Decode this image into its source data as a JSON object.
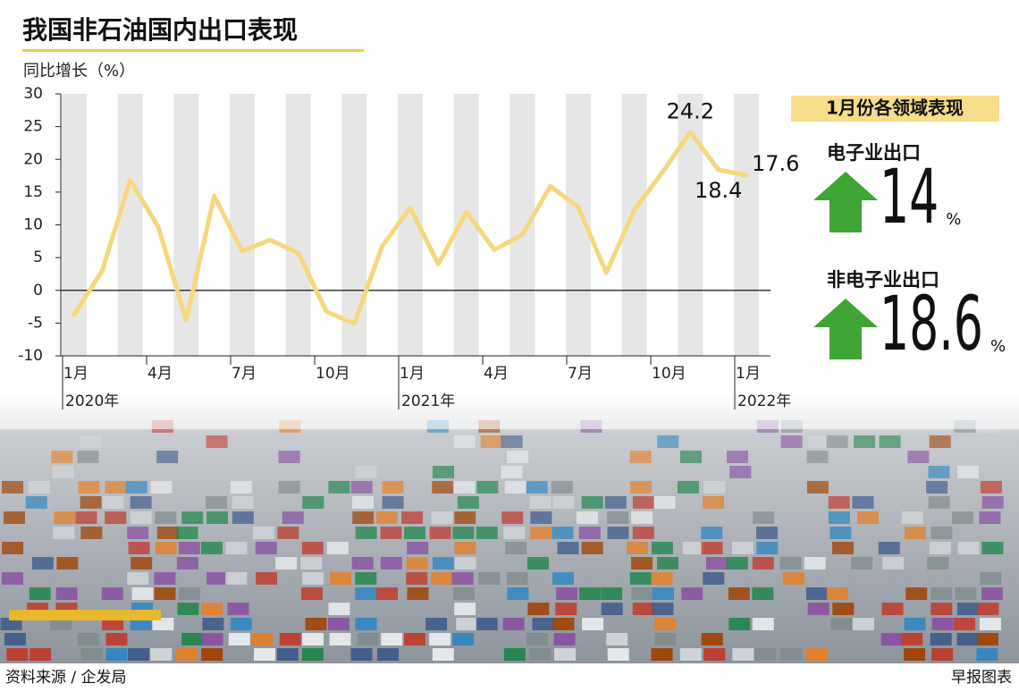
{
  "chart_data": {
    "type": "line",
    "title": "我国非石油国内出口表现",
    "y_label": "同比增长（%）",
    "categories": [
      "1月",
      null,
      null,
      "4月",
      null,
      null,
      "7月",
      null,
      null,
      "10月",
      null,
      null,
      "1月",
      null,
      null,
      "4月",
      null,
      null,
      "7月",
      null,
      null,
      "10月",
      null,
      null,
      "1月"
    ],
    "years": [
      "2020年",
      "2021年",
      "2022年"
    ],
    "series": [
      {
        "name": "非石油国内出口",
        "color": "#f6d77e",
        "values": [
          -3.7,
          3,
          16.8,
          9.7,
          -4.6,
          14.4,
          6,
          7.7,
          5.7,
          -3.2,
          -5.1,
          6.8,
          12.6,
          4,
          12,
          6.2,
          8.5,
          15.9,
          12.7,
          2.7,
          12.3,
          18,
          24.2,
          18.4,
          17.6
        ],
        "value_labels": [
          null,
          null,
          null,
          null,
          null,
          null,
          null,
          null,
          null,
          null,
          null,
          null,
          null,
          null,
          null,
          null,
          null,
          null,
          null,
          null,
          null,
          null,
          "24.2",
          "18.4",
          "17.6"
        ]
      }
    ],
    "ylim": [
      -10,
      30
    ],
    "yticks": [
      -10,
      -5,
      0,
      5,
      10,
      15,
      20,
      25,
      30
    ],
    "panel": {
      "title": "1月份各领域表现",
      "items": [
        {
          "name": "电子业出口",
          "value": 14,
          "unit": "%"
        },
        {
          "name": "非电子业出口",
          "value": 18.6,
          "unit": "%"
        }
      ]
    },
    "source": "资料来源 / 企发局",
    "credit": "早报图表"
  }
}
